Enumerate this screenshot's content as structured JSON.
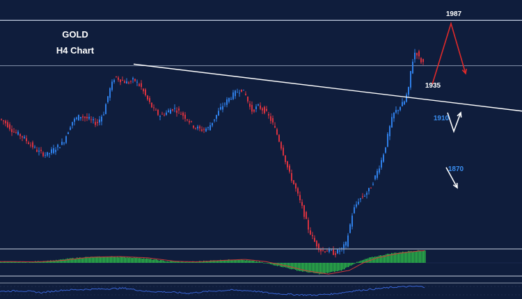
{
  "chart_data": {
    "type": "candlestick",
    "title": "GOLD",
    "subtitle": "H4 Chart",
    "colors": {
      "background": "#0f1d3c",
      "bull": "#2f7fe8",
      "bear": "#d8323f",
      "levels": "#c8d2e6",
      "trendline": "#ffffff",
      "label_white": "#ffffff",
      "label_blue": "#3a8ef0",
      "arrow_red": "#e02a2a",
      "arrow_white": "#ffffff",
      "macd_hist": "#2ec24a",
      "macd_signal": "#d03a3a",
      "rsi_line": "#3a66d8"
    },
    "ylim": [
      1840,
      2000
    ],
    "horizontal_levels": [
      1987,
      1958
    ],
    "trendline": {
      "start": [
        192,
        1959
      ],
      "end": [
        750,
        1929
      ]
    },
    "levels": [
      {
        "label": "1987",
        "value": 1987,
        "color": "white"
      },
      {
        "label": "1935",
        "value": 1935,
        "color": "white"
      },
      {
        "label": "1910",
        "value": 1910,
        "color": "blue"
      },
      {
        "label": "1870",
        "value": 1870,
        "color": "blue"
      }
    ],
    "scenarios": [
      {
        "direction": "up",
        "color": "red",
        "path": [
          [
            621,
            1946
          ],
          [
            648,
            1985
          ],
          [
            669,
            1953
          ]
        ]
      },
      {
        "direction": "down",
        "color": "white",
        "path": [
          [
            643,
            1928
          ],
          [
            652,
            1916
          ],
          [
            662,
            1928
          ]
        ]
      },
      {
        "direction": "down",
        "color": "white",
        "path": [
          [
            641,
            1893
          ],
          [
            657,
            1880
          ]
        ]
      }
    ],
    "price_knots": [
      [
        2,
        1924
      ],
      [
        10,
        1922
      ],
      [
        22,
        1916
      ],
      [
        34,
        1913
      ],
      [
        46,
        1908
      ],
      [
        58,
        1903
      ],
      [
        70,
        1901
      ],
      [
        82,
        1905
      ],
      [
        94,
        1909
      ],
      [
        106,
        1922
      ],
      [
        118,
        1926
      ],
      [
        130,
        1924
      ],
      [
        142,
        1921
      ],
      [
        152,
        1928
      ],
      [
        160,
        1942
      ],
      [
        168,
        1951
      ],
      [
        176,
        1949
      ],
      [
        186,
        1947
      ],
      [
        196,
        1949
      ],
      [
        206,
        1944
      ],
      [
        214,
        1937
      ],
      [
        222,
        1931
      ],
      [
        232,
        1926
      ],
      [
        242,
        1928
      ],
      [
        252,
        1931
      ],
      [
        262,
        1928
      ],
      [
        272,
        1924
      ],
      [
        282,
        1919
      ],
      [
        292,
        1917
      ],
      [
        302,
        1918
      ],
      [
        312,
        1925
      ],
      [
        322,
        1932
      ],
      [
        332,
        1937
      ],
      [
        342,
        1941
      ],
      [
        350,
        1943
      ],
      [
        356,
        1939
      ],
      [
        364,
        1929
      ],
      [
        374,
        1932
      ],
      [
        384,
        1929
      ],
      [
        394,
        1922
      ],
      [
        402,
        1913
      ],
      [
        410,
        1902
      ],
      [
        418,
        1890
      ],
      [
        428,
        1879
      ],
      [
        438,
        1866
      ],
      [
        446,
        1854
      ],
      [
        454,
        1846
      ],
      [
        464,
        1840
      ],
      [
        474,
        1840
      ],
      [
        484,
        1838
      ],
      [
        494,
        1841
      ],
      [
        500,
        1844
      ],
      [
        504,
        1852
      ],
      [
        510,
        1865
      ],
      [
        518,
        1872
      ],
      [
        526,
        1875
      ],
      [
        534,
        1879
      ],
      [
        542,
        1887
      ],
      [
        550,
        1896
      ],
      [
        556,
        1905
      ],
      [
        562,
        1917
      ],
      [
        568,
        1927
      ],
      [
        576,
        1931
      ],
      [
        584,
        1935
      ],
      [
        590,
        1943
      ],
      [
        594,
        1958
      ],
      [
        600,
        1968
      ],
      [
        606,
        1962
      ],
      [
        610,
        1960
      ]
    ],
    "macd_knots": [
      [
        0,
        0.2
      ],
      [
        40,
        0.15
      ],
      [
        80,
        0.4
      ],
      [
        100,
        0.7
      ],
      [
        120,
        0.9
      ],
      [
        160,
        1.0
      ],
      [
        200,
        0.8
      ],
      [
        240,
        0.25
      ],
      [
        270,
        0.15
      ],
      [
        300,
        0.35
      ],
      [
        340,
        0.55
      ],
      [
        370,
        0.2
      ],
      [
        400,
        -0.5
      ],
      [
        430,
        -1.3
      ],
      [
        460,
        -1.8
      ],
      [
        490,
        -1.2
      ],
      [
        510,
        0.0
      ],
      [
        530,
        0.8
      ],
      [
        560,
        1.5
      ],
      [
        590,
        1.9
      ],
      [
        610,
        2.0
      ]
    ],
    "rsi_knots": [
      [
        0,
        0.5
      ],
      [
        30,
        0.55
      ],
      [
        60,
        0.4
      ],
      [
        90,
        0.6
      ],
      [
        120,
        0.65
      ],
      [
        150,
        0.7
      ],
      [
        180,
        0.75
      ],
      [
        210,
        0.5
      ],
      [
        240,
        0.45
      ],
      [
        270,
        0.35
      ],
      [
        300,
        0.5
      ],
      [
        330,
        0.6
      ],
      [
        360,
        0.55
      ],
      [
        390,
        0.35
      ],
      [
        420,
        0.25
      ],
      [
        450,
        0.2
      ],
      [
        480,
        0.3
      ],
      [
        510,
        0.55
      ],
      [
        540,
        0.7
      ],
      [
        570,
        0.85
      ],
      [
        600,
        0.9
      ],
      [
        610,
        0.85
      ]
    ]
  }
}
